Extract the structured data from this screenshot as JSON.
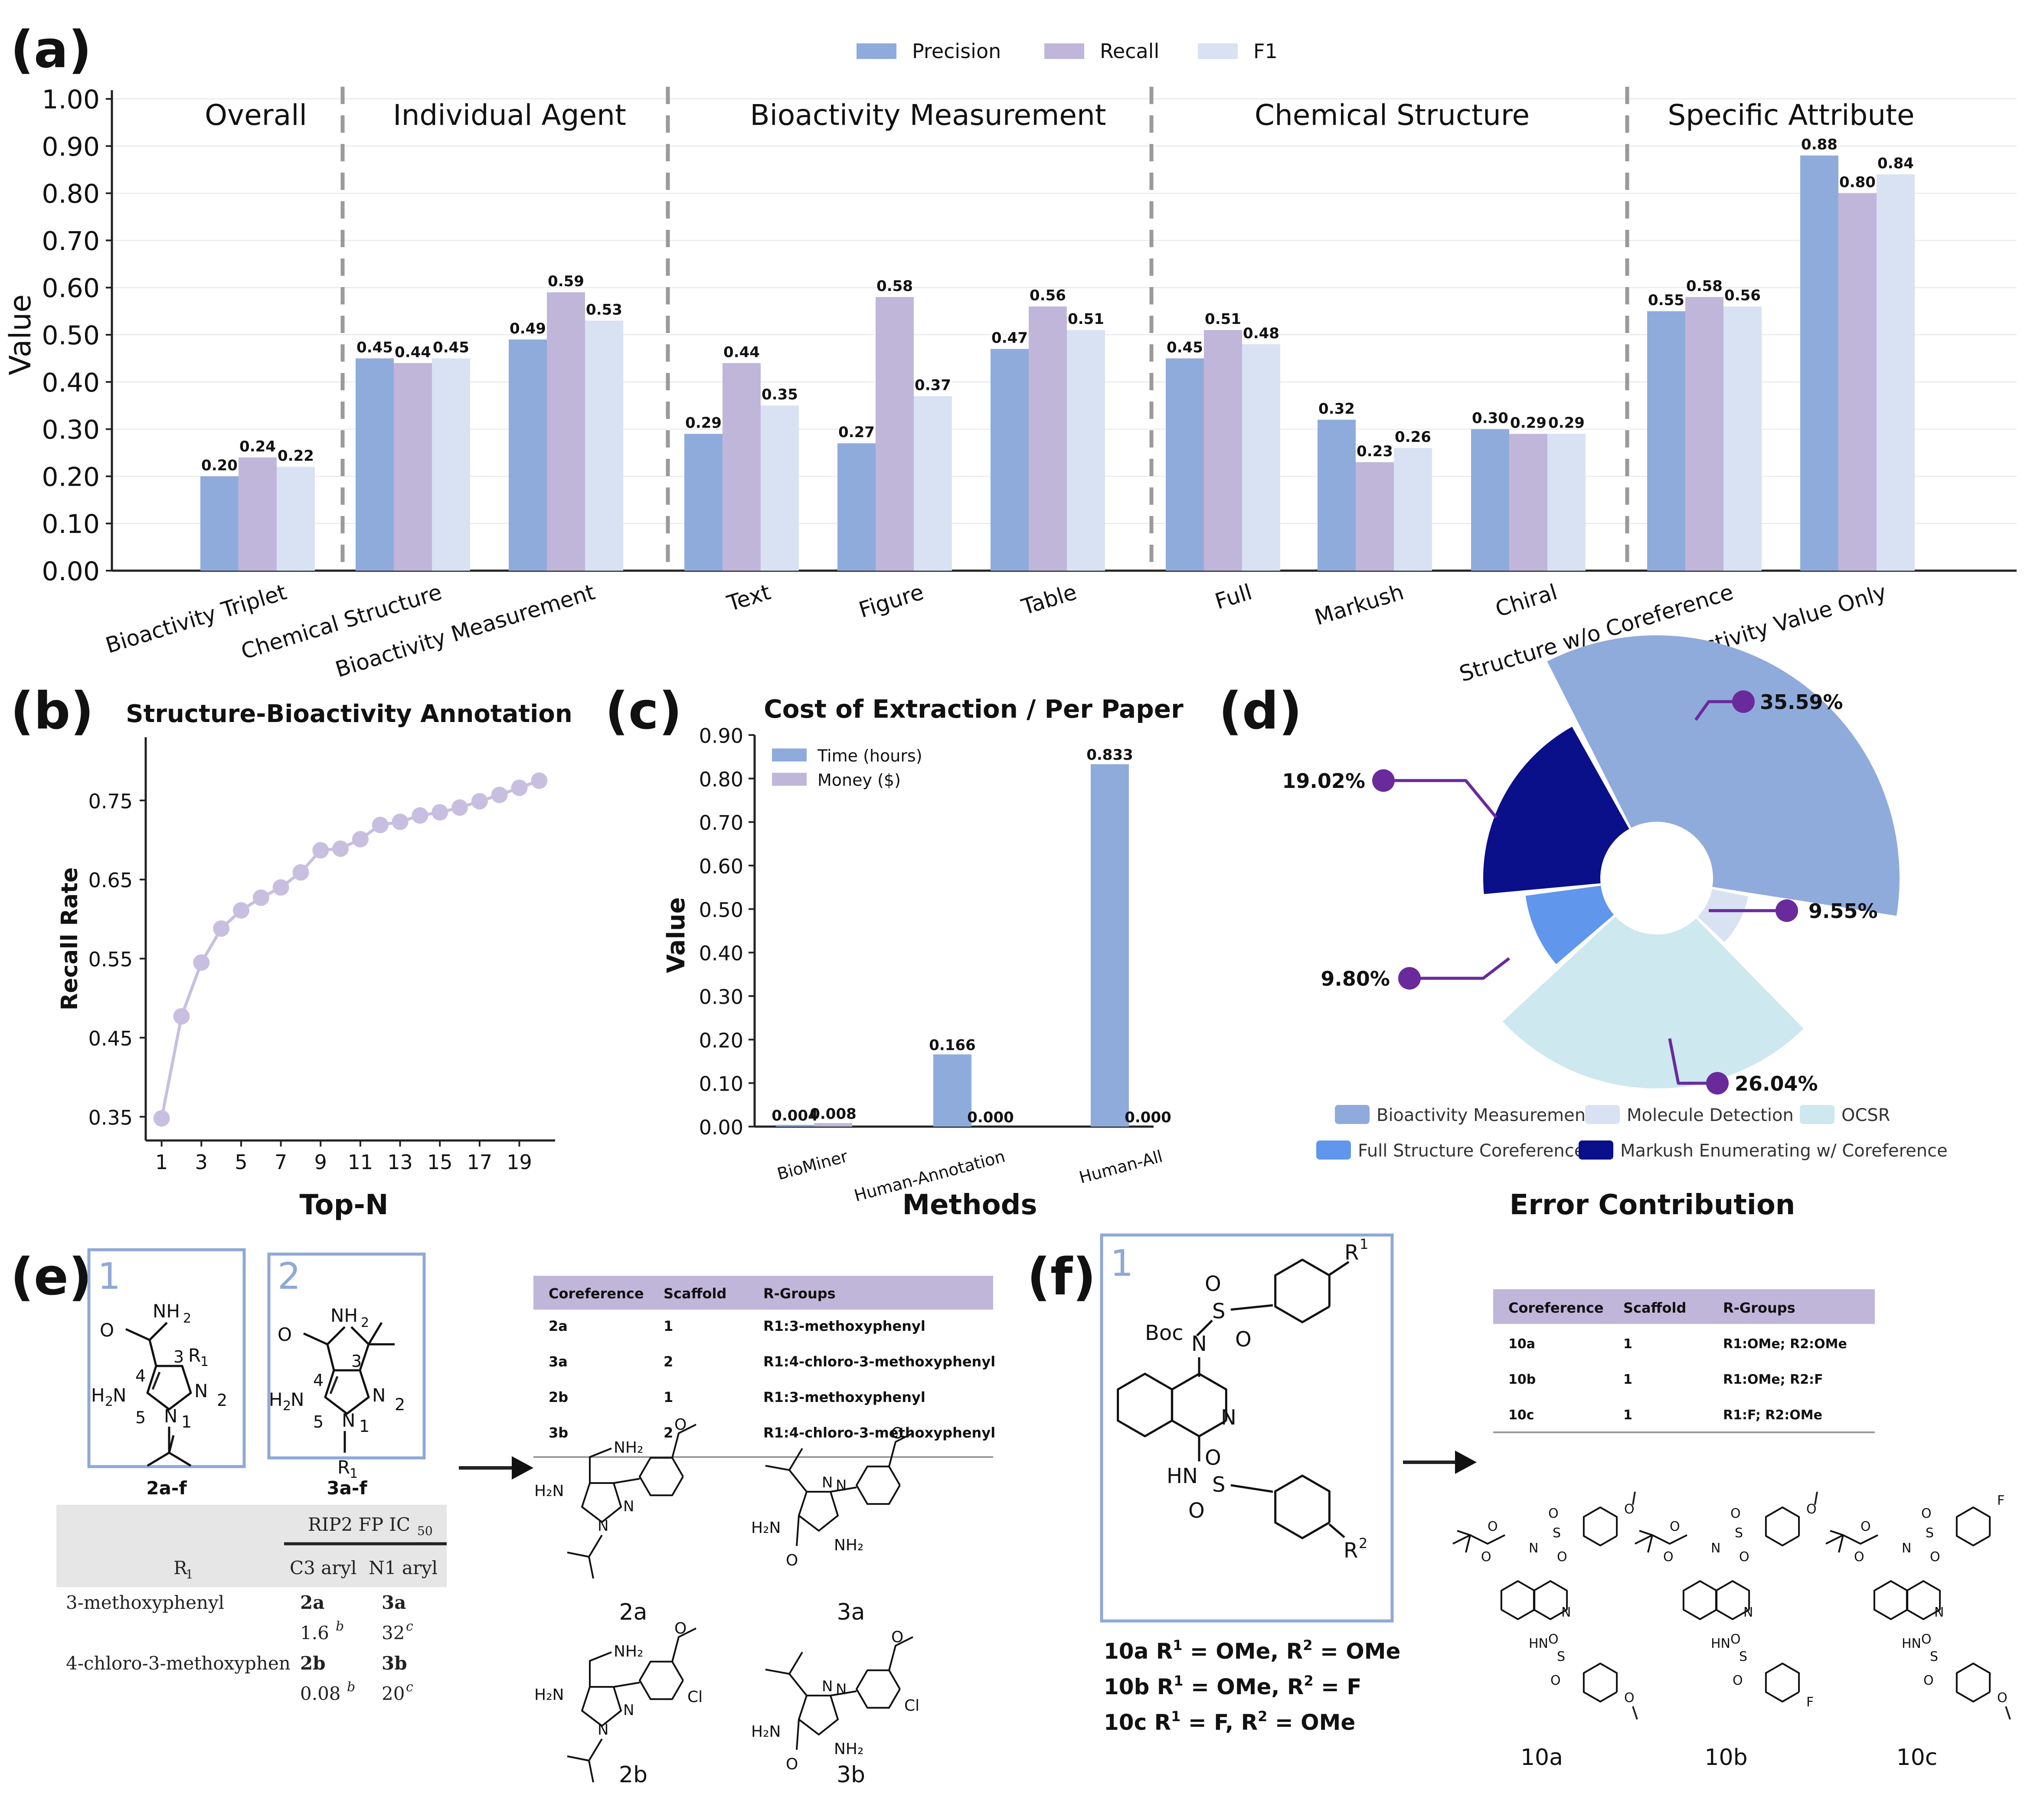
{
  "colors": {
    "precision": "#8fabdc",
    "recall": "#c0b6da",
    "f1": "#d8e2f3",
    "recall_curve": "#c8bfe0",
    "donut_bioactivity": "#8fabdc",
    "donut_molecule": "#d8e2f3",
    "donut_ocsr": "#cde8ee",
    "donut_full": "#6096ec",
    "donut_markush": "#0a0f8a",
    "leader": "#6a2a9c",
    "scheme_box": "#8fa8d6",
    "table_header": "#c0b6da"
  },
  "panel_labels": {
    "a": "(a)",
    "b": "(b)",
    "c": "(c)",
    "d": "(d)",
    "e": "(e)",
    "f": "(f)"
  },
  "chart_data": [
    {
      "id": "a",
      "type": "bar",
      "ylabel": "Value",
      "ylim": [
        0,
        1.0
      ],
      "yticks": [
        "0.00",
        "0.10",
        "0.20",
        "0.30",
        "0.40",
        "0.50",
        "0.60",
        "0.70",
        "0.80",
        "0.90",
        "1.00"
      ],
      "legend": [
        "Precision",
        "Recall",
        "F1"
      ],
      "legend_position": "top-center",
      "groups": [
        "Overall",
        "Individual Agent",
        "Bioactivity Measurement",
        "Chemical Structure",
        "Specific Attribute"
      ],
      "categories": [
        "Bioactivity Triplet",
        "Chemical Structure",
        "Bioactivity Measurement",
        "Text",
        "Figure",
        "Table",
        "Full",
        "Markush",
        "Chiral",
        "Structure w/o Coreference",
        "Bioactivity Value Only"
      ],
      "series": [
        {
          "name": "Precision",
          "values": [
            0.2,
            0.45,
            0.49,
            0.29,
            0.27,
            0.47,
            0.45,
            0.32,
            0.3,
            0.55,
            0.88
          ],
          "labels": [
            "0.20",
            "0.45",
            "0.49",
            "0.29",
            "0.27",
            "0.47",
            "0.45",
            "0.32",
            "0.30",
            "0.55",
            "0.88"
          ]
        },
        {
          "name": "Recall",
          "values": [
            0.24,
            0.44,
            0.59,
            0.44,
            0.58,
            0.56,
            0.51,
            0.23,
            0.29,
            0.58,
            0.8
          ],
          "labels": [
            "0.24",
            "0.44",
            "0.59",
            "0.44",
            "0.58",
            "0.56",
            "0.51",
            "0.23",
            "0.29",
            "0.58",
            "0.80"
          ]
        },
        {
          "name": "F1",
          "values": [
            0.22,
            0.45,
            0.53,
            0.35,
            0.37,
            0.51,
            0.48,
            0.26,
            0.29,
            0.56,
            0.84
          ],
          "labels": [
            "0.22",
            "0.45",
            "0.53",
            "0.35",
            "0.37",
            "0.51",
            "0.48",
            "0.26",
            "0.29",
            "0.56",
            "0.84"
          ]
        }
      ]
    },
    {
      "id": "b",
      "type": "line",
      "title": "Structure-Bioactivity Annotation",
      "xlabel": "Top-N",
      "ylabel": "Recall Rate",
      "xticks": [
        "1",
        "3",
        "5",
        "7",
        "9",
        "11",
        "13",
        "15",
        "17",
        "19"
      ],
      "yticks": [
        "0.35",
        "0.45",
        "0.55",
        "0.65",
        "0.75"
      ],
      "xlim": [
        0.2,
        20.8
      ],
      "ylim": [
        0.32,
        0.83
      ],
      "x": [
        1,
        2,
        3,
        4,
        5,
        6,
        7,
        8,
        9,
        10,
        11,
        12,
        13,
        14,
        15,
        16,
        17,
        18,
        19,
        20
      ],
      "y": [
        0.348,
        0.477,
        0.545,
        0.588,
        0.611,
        0.627,
        0.64,
        0.659,
        0.687,
        0.689,
        0.701,
        0.719,
        0.723,
        0.731,
        0.735,
        0.741,
        0.749,
        0.757,
        0.766,
        0.775
      ]
    },
    {
      "id": "c",
      "type": "bar",
      "title": "Cost of Extraction / Per Paper",
      "xlabel": "Methods",
      "ylabel": "Value",
      "ylim": [
        0,
        0.9
      ],
      "yticks": [
        "0.00",
        "0.10",
        "0.20",
        "0.30",
        "0.40",
        "0.50",
        "0.60",
        "0.70",
        "0.80",
        "0.90"
      ],
      "legend_position": "top-left",
      "categories": [
        "BioMiner",
        "Human-Annotation",
        "Human-All"
      ],
      "series": [
        {
          "name": "Time (hours)",
          "values": [
            0.004,
            0.166,
            0.833
          ],
          "labels": [
            "0.004",
            "0.166",
            "0.833"
          ]
        },
        {
          "name": "Money ($)",
          "values": [
            0.008,
            0.0,
            0.0
          ],
          "labels": [
            "0.008",
            "0.000",
            "0.000"
          ]
        }
      ]
    },
    {
      "id": "d",
      "type": "pie",
      "xlabel": "Error Contribution",
      "slices": [
        {
          "name": "Bioactivity Measurement",
          "value": 35.59,
          "label": "35.59%"
        },
        {
          "name": "Molecule Detection",
          "value": 9.55,
          "label": "9.55%"
        },
        {
          "name": "OCSR",
          "value": 26.04,
          "label": "26.04%"
        },
        {
          "name": "Full Structure Coreference",
          "value": 9.8,
          "label": "9.80%"
        },
        {
          "name": "Markush Enumerating w/ Coreference",
          "value": 19.02,
          "label": "19.02%"
        }
      ]
    }
  ],
  "panel_e": {
    "box1_number": "1",
    "box2_number": "2",
    "box1_caption": "2a-f",
    "box2_caption": "3a-f",
    "atoms": {
      "nh2": "NH",
      "nh2_sub": "2",
      "o": "O",
      "h2n": "H",
      "h2n_sub": "2",
      "h2n_n": "N",
      "n": "N",
      "r": "R",
      "r_sub": "1",
      "n1": "1",
      "n2": "2",
      "n3": "3",
      "n4": "4",
      "n5": "5"
    },
    "old_table": {
      "header_top": "RIP2 FP IC",
      "header_top_sub": "50",
      "r1_head": "R",
      "r1_head_sub": "1",
      "c3": "C3 aryl",
      "n1": "N1 aryl",
      "rows": [
        {
          "name": "3-methoxyphenyl",
          "c3": "2a",
          "n1": "3a",
          "c3_val": "1.6",
          "c3_sup": "b",
          "n1_val": "32",
          "n1_sup": "c"
        },
        {
          "name": "4-chloro-3-methoxyphen",
          "c3": "2b",
          "n1": "3b",
          "c3_val": "0.08",
          "c3_sup": "b",
          "n1_val": "20",
          "n1_sup": "c"
        }
      ]
    },
    "table": {
      "headers": [
        "Coreference",
        "Scaffold",
        "R-Groups"
      ],
      "rows": [
        [
          "2a",
          "1",
          "R1:3-methoxyphenyl"
        ],
        [
          "3a",
          "2",
          "R1:4-chloro-3-methoxyphenyl"
        ],
        [
          "2b",
          "1",
          "R1:3-methoxyphenyl"
        ],
        [
          "3b",
          "2",
          "R1:4-chloro-3-methoxyphenyl"
        ]
      ]
    },
    "molecules": [
      "2a",
      "3a",
      "2b",
      "3b"
    ],
    "mol_atoms": {
      "nh2": "NH₂",
      "h2n": "H₂N",
      "n": "N",
      "o": "O",
      "cl": "Cl"
    }
  },
  "panel_f": {
    "box_number": "1",
    "atoms": {
      "boc": "Boc",
      "n": "N",
      "s": "S",
      "o": "O",
      "hn": "HN",
      "r": "R",
      "r1": "1",
      "r2": "2"
    },
    "definitions": [
      {
        "id": "10a",
        "r1": "OMe",
        "r2": "OMe"
      },
      {
        "id": "10b",
        "r1": "OMe",
        "r2": "F"
      },
      {
        "id": "10c",
        "r1": "F",
        "r2": "OMe"
      }
    ],
    "def_text": {
      "r_letter": "R",
      "eq": " = ",
      "sep": ", "
    },
    "table": {
      "headers": [
        "Coreference",
        "Scaffold",
        "R-Groups"
      ],
      "rows": [
        [
          "10a",
          "1",
          "R1:OMe; R2:OMe"
        ],
        [
          "10b",
          "1",
          "R1:OMe; R2:F"
        ],
        [
          "10c",
          "1",
          "R1:F; R2:OMe"
        ]
      ]
    },
    "molecules": [
      "10a",
      "10b",
      "10c"
    ],
    "mol_atoms": {
      "n": "N",
      "s": "S",
      "o": "O",
      "hn": "HN",
      "f": "F"
    }
  }
}
